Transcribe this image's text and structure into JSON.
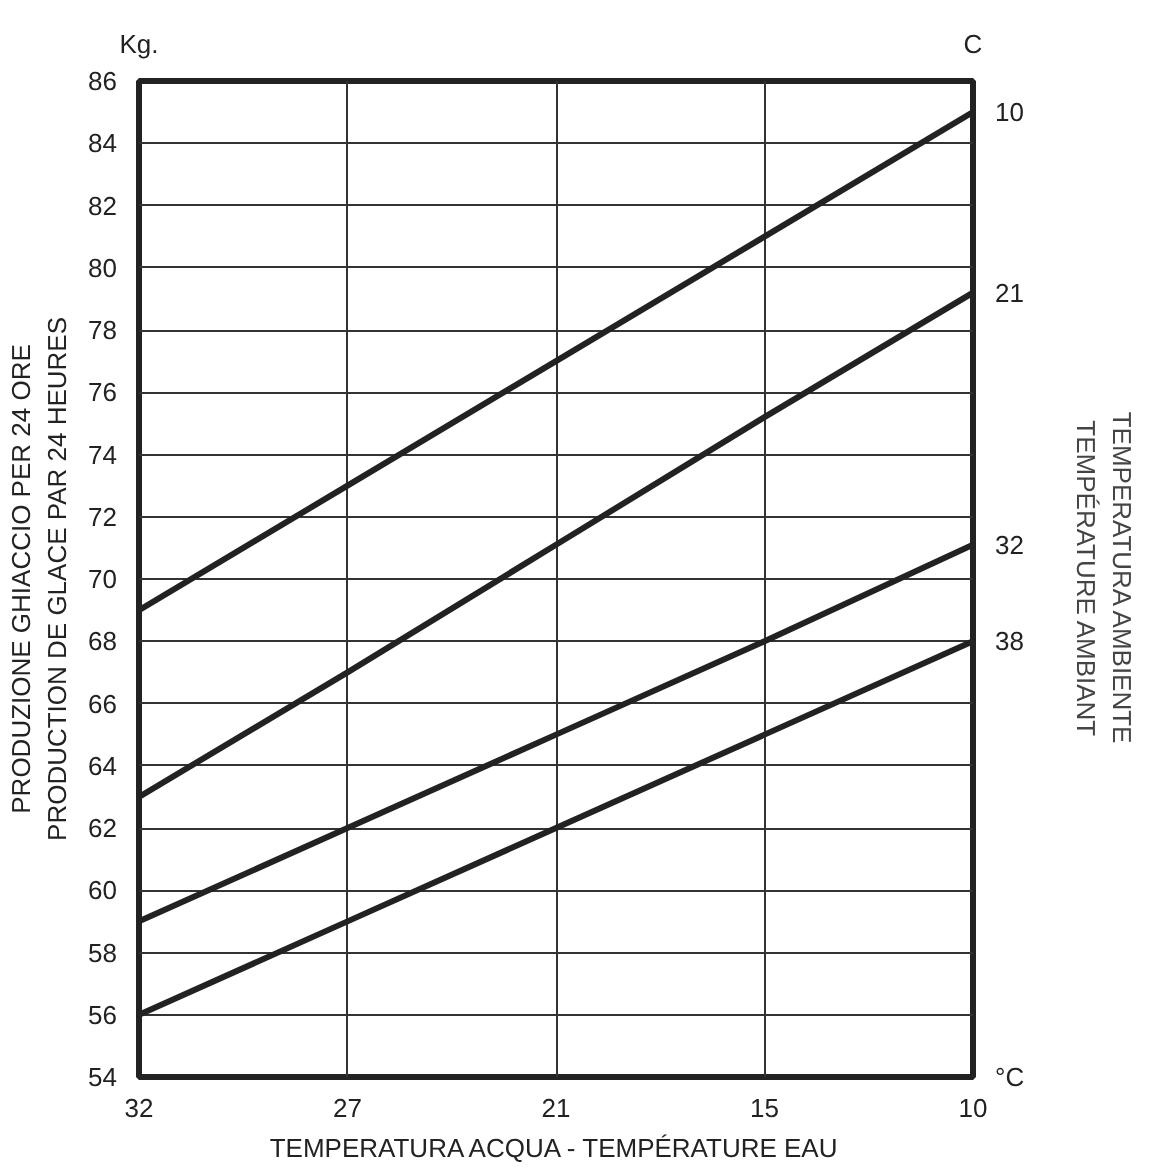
{
  "chart_data": {
    "type": "line",
    "xlabel": "TEMPERATURA ACQUA - TEMPÉRATURE EAU",
    "ylabel": "PRODUZIONE GHIACCIO PER 24 ORE\nPRODUCTION DE GLACE PAR 24 HEURES",
    "y2label": "TEMPERATURA AMBIENTE\nTEMPÉRATURE AMBIANT",
    "legend_title": "C",
    "annotations": [
      "Kg.",
      "°C"
    ],
    "categories": [
      "32",
      "27",
      "21",
      "15",
      "10"
    ],
    "ylim": [
      54,
      86
    ],
    "yticks": [
      54,
      56,
      58,
      60,
      62,
      64,
      66,
      68,
      70,
      72,
      74,
      76,
      78,
      80,
      82,
      84,
      86
    ],
    "grid": true,
    "legend": false,
    "marker": "none",
    "line_style": "solid",
    "series": [
      {
        "name": "10",
        "color": "#222222",
        "values": [
          69,
          73,
          77,
          81,
          85
        ]
      },
      {
        "name": "21",
        "color": "#222222",
        "values": [
          63,
          67,
          71.1,
          75.2,
          79.2
        ]
      },
      {
        "name": "32",
        "color": "#222222",
        "values": [
          59,
          62,
          65,
          68,
          71.1
        ]
      },
      {
        "name": "38",
        "color": "#222222",
        "values": [
          56,
          59,
          62,
          65,
          68
        ]
      }
    ]
  }
}
